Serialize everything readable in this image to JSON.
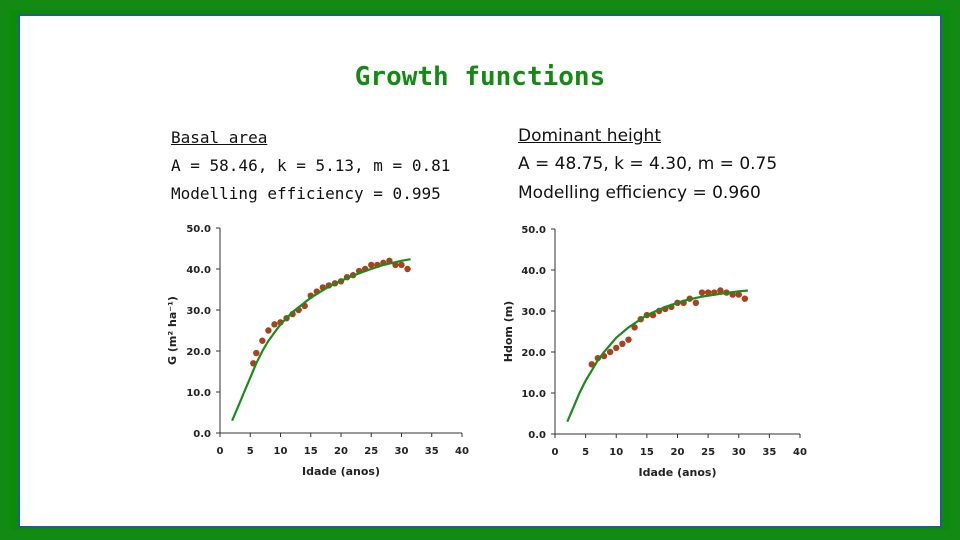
{
  "slide": {
    "title": "Growth functions",
    "left_panel": {
      "heading": "Basal area",
      "line1": "A = 58.46, k = 5.13, m = 0.81",
      "line2": "Modelling efficiency = 0.995"
    },
    "right_panel": {
      "heading": "Dominant height",
      "line1": "A = 48.75, k = 4.30, m = 0.75",
      "line2": "Modelling efficiency = 0.960"
    }
  },
  "colors": {
    "frame": "#138a13",
    "title": "#148a14",
    "curve": "#1c8a1c",
    "points": "#a8421e"
  },
  "chart_data": [
    {
      "type": "scatter",
      "title": "",
      "xlabel": "Idade (anos)",
      "ylabel": "G (m² ha⁻¹)",
      "xlim": [
        0,
        40
      ],
      "ylim": [
        0,
        50
      ],
      "xticks": [
        "0",
        "5",
        "10",
        "15",
        "20",
        "25",
        "30",
        "35",
        "40"
      ],
      "yticks": [
        "0.0",
        "10.0",
        "20.0",
        "30.0",
        "40.0",
        "50.0"
      ],
      "grid": false,
      "series": [
        {
          "kind": "points",
          "x": [
            5.5,
            6,
            7,
            8,
            9,
            10,
            11,
            12,
            13,
            14,
            15,
            16,
            17,
            18,
            19,
            20,
            21,
            22,
            23,
            24,
            25,
            26,
            27,
            28,
            29,
            30,
            31
          ],
          "y": [
            17,
            19.5,
            22.5,
            25,
            26.5,
            27,
            28,
            29,
            30,
            31,
            33.5,
            34.5,
            35.5,
            36,
            36.5,
            37,
            38,
            38.5,
            39.5,
            40,
            41,
            41,
            41.5,
            42,
            41,
            41,
            40
          ]
        },
        {
          "kind": "curve",
          "x": [
            2,
            3,
            4,
            5,
            6,
            7,
            8,
            10,
            12,
            15,
            18,
            21,
            24,
            27,
            30,
            31.5
          ],
          "y": [
            3,
            6.5,
            10,
            13.5,
            17,
            20,
            22.5,
            26.5,
            29.5,
            33,
            35.7,
            37.8,
            39.5,
            41,
            42,
            42.4
          ]
        }
      ]
    },
    {
      "type": "scatter",
      "title": "",
      "xlabel": "Idade (anos)",
      "ylabel": "Hdom (m)",
      "xlim": [
        0,
        40
      ],
      "ylim": [
        0,
        50
      ],
      "xticks": [
        "0",
        "5",
        "10",
        "15",
        "20",
        "25",
        "30",
        "35",
        "40"
      ],
      "yticks": [
        "0.0",
        "10.0",
        "20.0",
        "30.0",
        "40.0",
        "50.0"
      ],
      "grid": false,
      "series": [
        {
          "kind": "points",
          "x": [
            6,
            7,
            8,
            9,
            10,
            11,
            12,
            13,
            14,
            15,
            16,
            17,
            18,
            19,
            20,
            21,
            22,
            23,
            24,
            25,
            26,
            27,
            28,
            29,
            30,
            31
          ],
          "y": [
            17,
            18.5,
            19,
            20,
            21,
            22,
            23,
            26,
            28,
            29,
            29,
            30,
            30.5,
            31,
            32,
            32,
            33,
            32,
            34.5,
            34.5,
            34.5,
            35,
            34.5,
            34,
            34,
            33
          ]
        },
        {
          "kind": "curve",
          "x": [
            2,
            3,
            4,
            5,
            6,
            7,
            8,
            10,
            12,
            15,
            18,
            21,
            24,
            27,
            30,
            31.5
          ],
          "y": [
            3,
            6.5,
            10,
            13,
            15.5,
            18,
            20,
            23.5,
            26,
            29,
            31,
            32.5,
            33.5,
            34.2,
            34.8,
            35
          ]
        }
      ]
    }
  ]
}
